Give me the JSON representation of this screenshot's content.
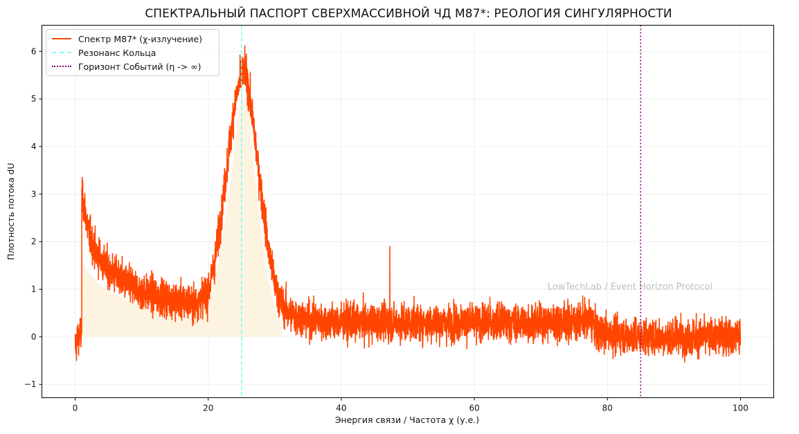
{
  "chart_data": {
    "type": "line",
    "title": "СПЕКТРАЛЬНЫЙ ПАСПОРТ СВЕРХМАССИВНОЙ ЧД M87*: РЕОЛОГИЯ СИНГУЛЯРНОСТИ",
    "xlabel": "Энергия связи / Частота χ (у.е.)",
    "ylabel": "Плотность потока dU",
    "xlim": [
      -5,
      105
    ],
    "ylim": [
      -1.28,
      6.55
    ],
    "xticks": [
      0,
      20,
      40,
      60,
      80,
      100
    ],
    "yticks": [
      -1,
      0,
      1,
      2,
      3,
      4,
      5,
      6
    ],
    "xtick_labels": [
      "0",
      "20",
      "40",
      "60",
      "80",
      "100"
    ],
    "ytick_labels": [
      "−1",
      "0",
      "1",
      "2",
      "3",
      "4",
      "5",
      "6"
    ],
    "grid": true,
    "legend_position": "upper left",
    "series": [
      {
        "name": "Спектр M87* (χ-излучение)",
        "style": "solid",
        "color": "#ff4500",
        "description": "Noisy spectrum; mean envelope sampled below, noise amplitude ~±0.5",
        "x": [
          0.0,
          0.5,
          0.99,
          1.0,
          1.3,
          2,
          3,
          5,
          8,
          10,
          14,
          18,
          20,
          21,
          22,
          23,
          24,
          25,
          25.5,
          26,
          27,
          28,
          29,
          30,
          31,
          32,
          35,
          40,
          47.3,
          50,
          60,
          70,
          77.5,
          78.5,
          85,
          90,
          95,
          100
        ],
        "mean": [
          -0.2,
          0.0,
          0.1,
          2.9,
          2.8,
          2.2,
          1.8,
          1.4,
          1.1,
          0.95,
          0.8,
          0.7,
          0.95,
          1.6,
          2.6,
          3.8,
          4.9,
          5.5,
          5.6,
          5.3,
          4.2,
          3.0,
          1.9,
          1.1,
          0.7,
          0.5,
          0.35,
          0.3,
          0.3,
          0.3,
          0.3,
          0.3,
          0.35,
          0.1,
          0.0,
          0.0,
          0.0,
          0.05
        ],
        "noise": 0.5,
        "spikes": [
          {
            "x": 47.3,
            "y": 1.9
          }
        ],
        "y_range_observed": [
          -0.9,
          6.2
        ]
      },
      {
        "name": "Резонанс Кольца",
        "style": "dashed",
        "color": "#7ffcf0",
        "type": "vline",
        "x": 25
      },
      {
        "name": "Горизонт Событий (η -> ∞)",
        "style": "dotted",
        "color": "#800080",
        "type": "vline",
        "x": 85
      }
    ],
    "fill": {
      "color": "#fdf3e1",
      "x": [
        1.0,
        2,
        4,
        8,
        12,
        16,
        19,
        20.5,
        22,
        23,
        24,
        25,
        26,
        27,
        28,
        29,
        30,
        30.8,
        31.2
      ],
      "top": [
        1.6,
        1.35,
        1.05,
        0.75,
        0.6,
        0.55,
        0.6,
        0.9,
        1.9,
        2.9,
        4.0,
        5.1,
        4.8,
        3.4,
        2.2,
        1.2,
        0.6,
        0.3,
        0.0
      ],
      "bottom": 0
    },
    "annotations": [
      {
        "text": "LowTechLab / Event Horizon Protocol",
        "x": 71,
        "y": 1.05,
        "style": "watermark"
      }
    ]
  },
  "legend": {
    "items": [
      {
        "label": "Спектр M87* (χ-излучение)"
      },
      {
        "label": "Резонанс Кольца"
      },
      {
        "label": "Горизонт Событий (η -> ∞)"
      }
    ]
  }
}
